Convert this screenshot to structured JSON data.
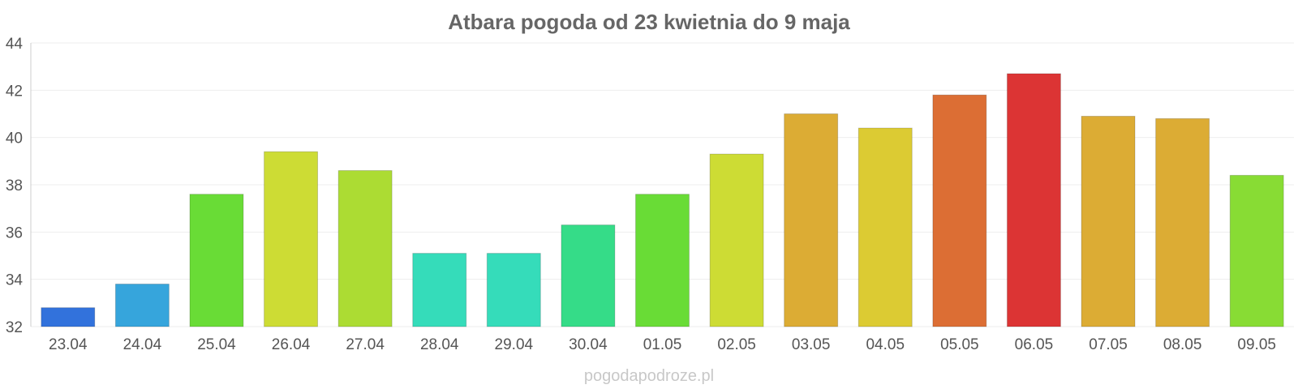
{
  "chart_data": {
    "type": "bar",
    "title": "Atbara pogoda od 23 kwietnia do 9 maja",
    "xlabel": "",
    "ylabel": "",
    "ylim": [
      32,
      44
    ],
    "yticks": [
      "32",
      "34",
      "36",
      "38",
      "40",
      "42",
      "44"
    ],
    "grid": true,
    "categories": [
      "23.04",
      "24.04",
      "25.04",
      "26.04",
      "27.04",
      "28.04",
      "29.04",
      "30.04",
      "01.05",
      "02.05",
      "03.05",
      "04.05",
      "05.05",
      "06.05",
      "07.05",
      "08.05",
      "09.05"
    ],
    "values": [
      32.8,
      33.8,
      37.6,
      39.4,
      38.6,
      35.1,
      35.1,
      36.3,
      37.6,
      39.3,
      41.0,
      40.4,
      41.8,
      42.7,
      40.9,
      40.8,
      38.4
    ],
    "colors": [
      "#3272dc",
      "#36a5dc",
      "#69dc36",
      "#cddc34",
      "#acdc33",
      "#35dcba",
      "#35dcba",
      "#35dc88",
      "#69dc36",
      "#cddc34",
      "#dcac34",
      "#dccb33",
      "#dc6e34",
      "#dc3434",
      "#dcac34",
      "#dcac34",
      "#88dc34"
    ]
  },
  "watermark": "pogodapodroze.pl"
}
